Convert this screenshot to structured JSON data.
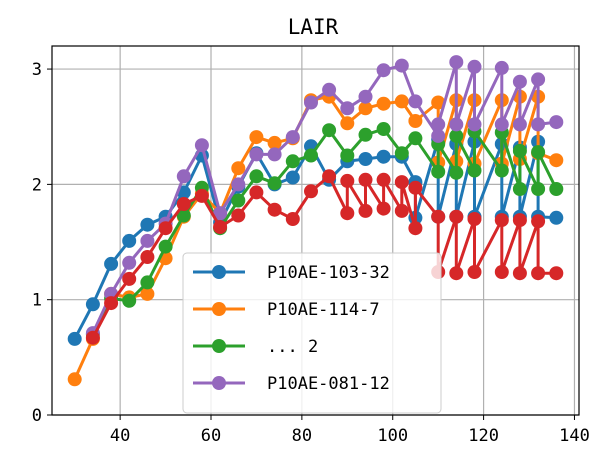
{
  "chart_data": {
    "type": "line",
    "title": "LAIR",
    "xlabel": "",
    "ylabel": "",
    "xlim": [
      25.0,
      141.0
    ],
    "ylim": [
      0,
      3.2
    ],
    "xticks": [
      40,
      60,
      80,
      100,
      120,
      140
    ],
    "yticks": [
      0,
      1,
      2,
      3
    ],
    "grid": true,
    "legend": {
      "placement": "lower-center"
    },
    "series": [
      {
        "name": "P10AE-103-32",
        "color": "#1f77b4",
        "x": [
          30,
          34,
          38,
          42,
          46,
          50,
          54,
          58,
          62,
          66,
          70,
          74,
          78,
          82,
          86,
          90,
          94,
          98,
          102,
          105,
          105,
          110,
          110,
          114,
          114,
          118,
          118,
          124,
          124,
          128,
          128,
          132,
          132,
          136
        ],
        "y": [
          0.66,
          0.96,
          1.31,
          1.51,
          1.65,
          1.72,
          1.93,
          2.25,
          1.67,
          1.98,
          2.27,
          2.0,
          2.06,
          2.33,
          2.04,
          2.2,
          2.22,
          2.24,
          2.24,
          2.02,
          1.71,
          2.39,
          1.72,
          2.35,
          1.72,
          2.37,
          1.72,
          2.35,
          1.72,
          2.32,
          1.72,
          2.37,
          1.72,
          1.71
        ]
      },
      {
        "name": "P10AE-114-7",
        "color": "#ff7f0e",
        "x": [
          30,
          34,
          38,
          42,
          46,
          50,
          54,
          58,
          62,
          66,
          70,
          74,
          78,
          82,
          86,
          90,
          94,
          98,
          102,
          105,
          110,
          110,
          114,
          114,
          118,
          118,
          124,
          124,
          128,
          128,
          132,
          132,
          136
        ],
        "y": [
          0.31,
          0.66,
          1.05,
          1.02,
          1.05,
          1.36,
          1.72,
          1.92,
          1.75,
          2.14,
          2.41,
          2.36,
          2.4,
          2.73,
          2.76,
          2.53,
          2.66,
          2.7,
          2.72,
          2.55,
          2.71,
          2.19,
          2.73,
          2.2,
          2.73,
          2.18,
          2.73,
          2.18,
          2.76,
          2.22,
          2.76,
          2.27,
          2.21
        ]
      },
      {
        "name": "... 2",
        "color": "#2ca02c",
        "x": [
          34,
          38,
          42,
          46,
          50,
          54,
          58,
          62,
          66,
          70,
          74,
          78,
          82,
          86,
          90,
          94,
          98,
          102,
          105,
          110,
          110,
          114,
          114,
          118,
          118,
          124,
          124,
          128,
          128,
          132,
          132,
          136
        ],
        "y": [
          0.7,
          1.01,
          0.99,
          1.15,
          1.46,
          1.73,
          1.97,
          1.62,
          1.86,
          2.07,
          2.01,
          2.2,
          2.25,
          2.47,
          2.25,
          2.43,
          2.48,
          2.27,
          2.4,
          2.11,
          2.35,
          2.1,
          2.42,
          2.12,
          2.46,
          2.12,
          2.45,
          1.96,
          2.29,
          1.96,
          2.28,
          1.96
        ]
      },
      {
        "name": "P10AE-081-12",
        "color": "#9467bd",
        "x": [
          34,
          38,
          42,
          46,
          50,
          54,
          58,
          62,
          66,
          70,
          74,
          78,
          82,
          86,
          90,
          94,
          98,
          102,
          105,
          110,
          110,
          114,
          114,
          118,
          118,
          124,
          124,
          128,
          128,
          132,
          132,
          136
        ],
        "y": [
          0.71,
          1.05,
          1.32,
          1.51,
          1.66,
          2.07,
          2.34,
          1.75,
          2.0,
          2.26,
          2.26,
          2.41,
          2.71,
          2.82,
          2.66,
          2.76,
          2.99,
          3.03,
          2.72,
          2.42,
          2.52,
          3.06,
          2.52,
          3.02,
          2.52,
          3.01,
          2.52,
          2.89,
          2.52,
          2.91,
          2.52,
          2.54
        ]
      },
      {
        "name": "",
        "color": "#d62728",
        "x": [
          34,
          38,
          42,
          46,
          50,
          54,
          58,
          62,
          66,
          70,
          74,
          78,
          82,
          86,
          90,
          90,
          94,
          94,
          98,
          98,
          102,
          102,
          105,
          105,
          110,
          110,
          114,
          114,
          118,
          118,
          124,
          124,
          128,
          128,
          132,
          132,
          136
        ],
        "y": [
          0.67,
          0.97,
          1.18,
          1.37,
          1.62,
          1.83,
          1.9,
          1.63,
          1.73,
          1.93,
          1.78,
          1.7,
          1.94,
          2.07,
          1.75,
          2.03,
          1.77,
          2.04,
          1.79,
          2.04,
          1.77,
          2.02,
          1.62,
          1.97,
          1.72,
          1.24,
          1.72,
          1.23,
          1.7,
          1.24,
          1.69,
          1.24,
          1.69,
          1.23,
          1.68,
          1.23,
          1.23
        ]
      }
    ]
  }
}
